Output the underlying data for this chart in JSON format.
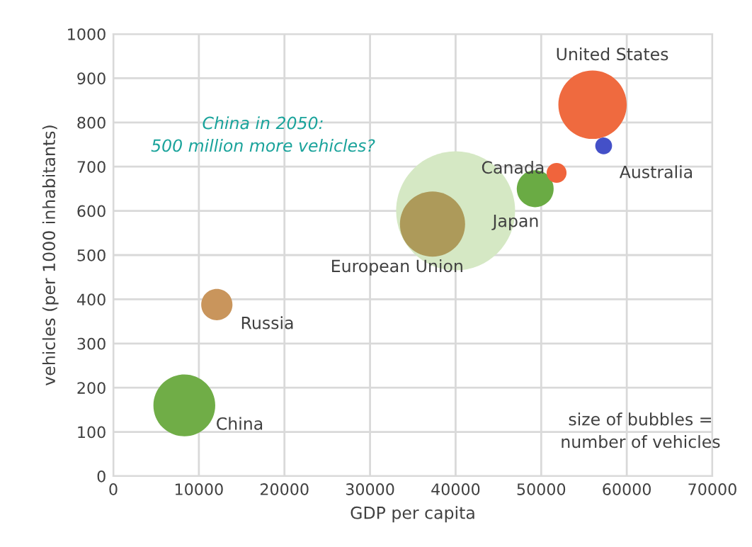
{
  "chart_data": {
    "type": "bubble",
    "xlabel": "GDP per capita",
    "ylabel": "vehicles (per 1000 inhabitants)",
    "xlim": [
      0,
      70000
    ],
    "ylim": [
      0,
      1000
    ],
    "xticks": [
      0,
      10000,
      20000,
      30000,
      40000,
      50000,
      60000,
      70000
    ],
    "yticks": [
      0,
      100,
      200,
      300,
      400,
      500,
      600,
      700,
      800,
      900,
      1000
    ],
    "grid": true,
    "legend": false,
    "annotations": [
      "China in 2050:\n500 million more vehicles?",
      "size of bubbles =\nnumber of vehicles"
    ],
    "series": [
      {
        "color": "#d5e8c4",
        "x": [
          40000
        ],
        "values": [
          600
        ],
        "sizes": [
          1
        ]
      },
      {
        "name": "China",
        "color": "#70ad47",
        "x": [
          8300
        ],
        "values": [
          160
        ],
        "sizes": [
          0.27
        ]
      },
      {
        "name": "Russia",
        "color": "#c9955c",
        "x": [
          12100
        ],
        "values": [
          388
        ],
        "sizes": [
          0.069
        ]
      },
      {
        "name": "European Union",
        "color": "#ad9a5a",
        "x": [
          37300
        ],
        "values": [
          570
        ],
        "sizes": [
          0.3
        ]
      },
      {
        "name": "Japan",
        "color": "#6aab44",
        "x": [
          49300
        ],
        "values": [
          650
        ],
        "sizes": [
          0.096
        ]
      },
      {
        "name": "Canada",
        "color": "#f0643c",
        "x": [
          51800
        ],
        "values": [
          686
        ],
        "sizes": [
          0.028
        ]
      },
      {
        "name": "United States",
        "color": "#ef6a3f",
        "x": [
          56000
        ],
        "values": [
          840
        ],
        "sizes": [
          0.33
        ]
      },
      {
        "name": "Australia",
        "color": "#4450c8",
        "x": [
          57300
        ],
        "values": [
          747
        ],
        "sizes": [
          0.02
        ]
      }
    ]
  }
}
